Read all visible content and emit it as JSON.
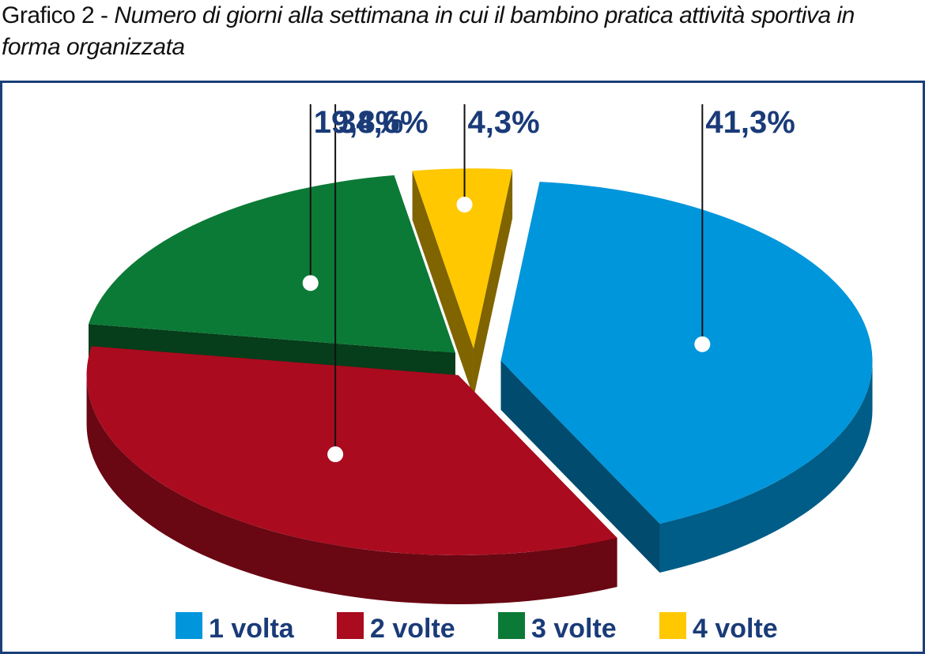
{
  "title": {
    "prefix": "Grafico 2 -",
    "text": "Numero di giorni alla settimana in cui il bambino pratica attività sportiva in forma organizzata"
  },
  "chart_data": {
    "type": "pie",
    "style": "3d-exploded",
    "categories": [
      "1 volta",
      "2 volte",
      "3 volte",
      "4 volte"
    ],
    "values": [
      41.3,
      34.6,
      19.8,
      4.3
    ],
    "value_labels": [
      "41,3%",
      "34,6%",
      "19,8%",
      "4,3%"
    ],
    "colors": {
      "1 volta": "#0096dc",
      "2 volte": "#aa0b1e",
      "3 volte": "#0b7a36",
      "4 volte": "#ffc800"
    },
    "legend_position": "bottom"
  }
}
